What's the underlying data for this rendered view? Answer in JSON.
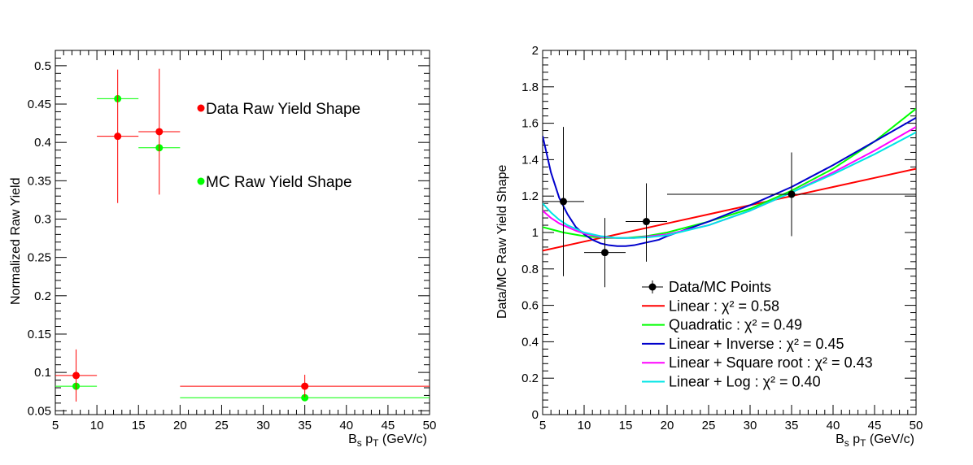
{
  "chart_data": [
    {
      "type": "scatter",
      "xlabel": "B_s p_T (GeV/c)",
      "ylabel": "Normalized Raw Yield",
      "xlim": [
        5,
        50
      ],
      "ylim": [
        0.045,
        0.52
      ],
      "x_ticks": [
        5,
        10,
        15,
        20,
        25,
        30,
        35,
        40,
        45,
        50
      ],
      "y_ticks": [
        0.05,
        0.1,
        0.15,
        0.2,
        0.25,
        0.3,
        0.35,
        0.4,
        0.45,
        0.5
      ],
      "y_tick_labels": [
        "0.05",
        "0.1",
        "0.15",
        "0.2",
        "0.25",
        "0.3",
        "0.35",
        "0.4",
        "0.45",
        "0.5"
      ],
      "grid": false,
      "legend": [
        {
          "label": "Data Raw Yield Shape",
          "color": "#ff0000"
        },
        {
          "label": "MC Raw Yield Shape",
          "color": "#00ff00"
        }
      ],
      "series": [
        {
          "name": "Data Raw Yield Shape",
          "color": "#ff0000",
          "points": [
            {
              "x": 7.5,
              "xlo": 5,
              "xhi": 10,
              "y": 0.096,
              "ylo": 0.062,
              "yhi": 0.13
            },
            {
              "x": 12.5,
              "xlo": 10,
              "xhi": 15,
              "y": 0.408,
              "ylo": 0.321,
              "yhi": 0.495
            },
            {
              "x": 17.5,
              "xlo": 15,
              "xhi": 20,
              "y": 0.414,
              "ylo": 0.332,
              "yhi": 0.496
            },
            {
              "x": 35,
              "xlo": 20,
              "xhi": 50,
              "y": 0.082,
              "ylo": 0.068,
              "yhi": 0.097
            }
          ]
        },
        {
          "name": "MC Raw Yield Shape",
          "color": "#00ff00",
          "points": [
            {
              "x": 7.5,
              "xlo": 5,
              "xhi": 10,
              "y": 0.082
            },
            {
              "x": 12.5,
              "xlo": 10,
              "xhi": 15,
              "y": 0.457
            },
            {
              "x": 17.5,
              "xlo": 15,
              "xhi": 20,
              "y": 0.393
            },
            {
              "x": 35,
              "xlo": 20,
              "xhi": 50,
              "y": 0.067
            }
          ]
        }
      ]
    },
    {
      "type": "line",
      "xlabel": "B_s p_T (GeV/c)",
      "ylabel": "Data/MC Raw Yield Shape",
      "xlim": [
        5,
        50
      ],
      "ylim": [
        0,
        2
      ],
      "x_ticks": [
        5,
        10,
        15,
        20,
        25,
        30,
        35,
        40,
        45,
        50
      ],
      "y_ticks": [
        0,
        0.2,
        0.4,
        0.6,
        0.8,
        1,
        1.2,
        1.4,
        1.6,
        1.8,
        2
      ],
      "y_tick_labels": [
        "0",
        "0.2",
        "0.4",
        "0.6",
        "0.8",
        "1",
        "1.2",
        "1.4",
        "1.6",
        "1.8",
        "2"
      ],
      "grid": false,
      "legend_position": "bottom-center",
      "points_series": {
        "name": "Data/MC Points",
        "color": "#000000",
        "points": [
          {
            "x": 7.5,
            "xlo": 5,
            "xhi": 10,
            "y": 1.17,
            "ylo": 0.76,
            "yhi": 1.58
          },
          {
            "x": 12.5,
            "xlo": 10,
            "xhi": 15,
            "y": 0.89,
            "ylo": 0.7,
            "yhi": 1.08
          },
          {
            "x": 17.5,
            "xlo": 15,
            "xhi": 20,
            "y": 1.06,
            "ylo": 0.84,
            "yhi": 1.27
          },
          {
            "x": 35,
            "xlo": 20,
            "xhi": 50,
            "y": 1.21,
            "ylo": 0.98,
            "yhi": 1.44
          }
        ]
      },
      "fits": [
        {
          "name": "Linear",
          "chi2": "0.58",
          "color": "#ff0000",
          "x": [
            5,
            10,
            15,
            20,
            25,
            30,
            35,
            40,
            45,
            50
          ],
          "y": [
            0.9,
            0.95,
            1.0,
            1.05,
            1.1,
            1.15,
            1.2,
            1.25,
            1.3,
            1.35
          ]
        },
        {
          "name": "Quadratic",
          "chi2": "0.49",
          "color": "#00ff00",
          "x": [
            5,
            7.5,
            10,
            12.5,
            15,
            17.5,
            20,
            25,
            30,
            35,
            40,
            45,
            50
          ],
          "y": [
            1.03,
            1.0,
            0.98,
            0.97,
            0.97,
            0.98,
            1.0,
            1.06,
            1.13,
            1.23,
            1.35,
            1.5,
            1.68
          ]
        },
        {
          "name": "Linear + Inverse",
          "chi2": "0.45",
          "color": "#0000cc",
          "x": [
            5,
            6,
            7,
            8,
            9,
            10,
            11,
            12,
            13,
            14,
            15,
            16,
            17,
            18,
            19,
            20,
            25,
            30,
            35,
            40,
            45,
            50
          ],
          "y": [
            1.53,
            1.33,
            1.19,
            1.1,
            1.03,
            0.99,
            0.96,
            0.94,
            0.93,
            0.925,
            0.925,
            0.93,
            0.94,
            0.95,
            0.96,
            0.98,
            1.06,
            1.15,
            1.25,
            1.37,
            1.5,
            1.63
          ]
        },
        {
          "name": "Linear + Square root",
          "chi2": "0.43",
          "color": "#ff00ff",
          "x": [
            5,
            6,
            7,
            8,
            9,
            10,
            12,
            14,
            16,
            18,
            20,
            25,
            30,
            35,
            40,
            45,
            50
          ],
          "y": [
            1.12,
            1.08,
            1.05,
            1.03,
            1.01,
            0.995,
            0.975,
            0.97,
            0.97,
            0.98,
            0.99,
            1.04,
            1.12,
            1.22,
            1.33,
            1.45,
            1.58
          ]
        },
        {
          "name": "Linear + Log",
          "chi2": "0.40",
          "color": "#00e5e5",
          "x": [
            5,
            6,
            7,
            8,
            9,
            10,
            12,
            14,
            16,
            18,
            20,
            25,
            30,
            35,
            40,
            45,
            50
          ],
          "y": [
            1.16,
            1.11,
            1.07,
            1.04,
            1.02,
            1.0,
            0.98,
            0.97,
            0.97,
            0.975,
            0.985,
            1.04,
            1.12,
            1.22,
            1.32,
            1.43,
            1.55
          ]
        }
      ],
      "legend": [
        {
          "label": "Data/MC Points",
          "color": "#000000",
          "marker": "point"
        },
        {
          "label": "Linear : χ² = 0.58",
          "color": "#ff0000",
          "marker": "line"
        },
        {
          "label": "Quadratic : χ² = 0.49",
          "color": "#00ff00",
          "marker": "line"
        },
        {
          "label": "Linear + Inverse : χ² = 0.45",
          "color": "#0000cc",
          "marker": "line"
        },
        {
          "label": "Linear + Square root : χ² = 0.43",
          "color": "#ff00ff",
          "marker": "line"
        },
        {
          "label": "Linear + Log : χ² = 0.40",
          "color": "#00e5e5",
          "marker": "line"
        }
      ]
    }
  ]
}
